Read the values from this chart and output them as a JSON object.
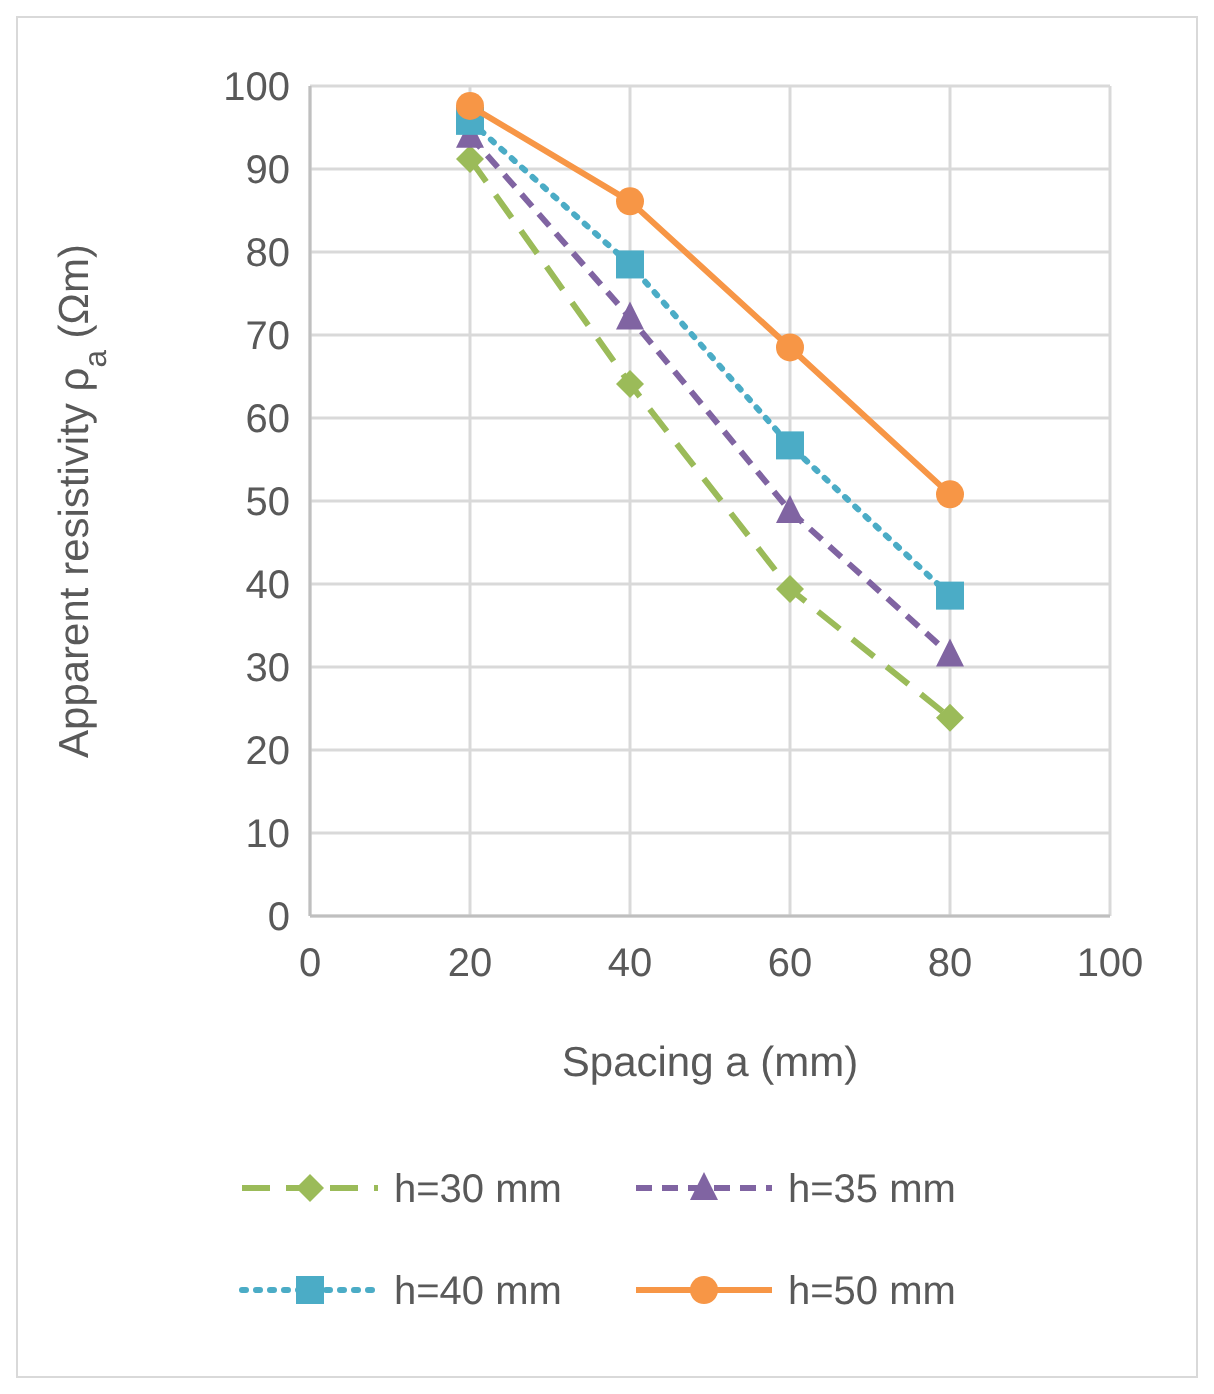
{
  "chart_data": {
    "type": "line",
    "xlabel": "Spacing a (mm)",
    "ylabel": "Apparent resistivity ρ$_{a}$ (Ωm)",
    "x": [
      20,
      40,
      60,
      80
    ],
    "xlim": [
      0,
      100
    ],
    "xticks": [
      0,
      20,
      40,
      60,
      80,
      100
    ],
    "ylim": [
      0,
      100
    ],
    "yticks": [
      0,
      10,
      20,
      30,
      40,
      50,
      60,
      70,
      80,
      90,
      100
    ],
    "grid": true,
    "legend": "bottom",
    "series": [
      {
        "name": "h=30 mm",
        "color": "#9bbb59",
        "values": [
          91.2,
          64.1,
          39.4,
          23.9
        ],
        "marker": "diamond",
        "line_style": "dashed"
      },
      {
        "name": "h=35 mm",
        "color": "#8064a2",
        "values": [
          94.0,
          72.1,
          48.8,
          31.5
        ],
        "marker": "triangle",
        "line_style": "dashed"
      },
      {
        "name": "h=40 mm",
        "color": "#4bacc6",
        "values": [
          95.8,
          78.5,
          56.7,
          38.6
        ],
        "marker": "square",
        "line_style": "dotted"
      },
      {
        "name": "h=50 mm",
        "color": "#f79646",
        "values": [
          97.6,
          86.1,
          68.5,
          50.8
        ],
        "marker": "circle",
        "line_style": "solid"
      }
    ]
  }
}
